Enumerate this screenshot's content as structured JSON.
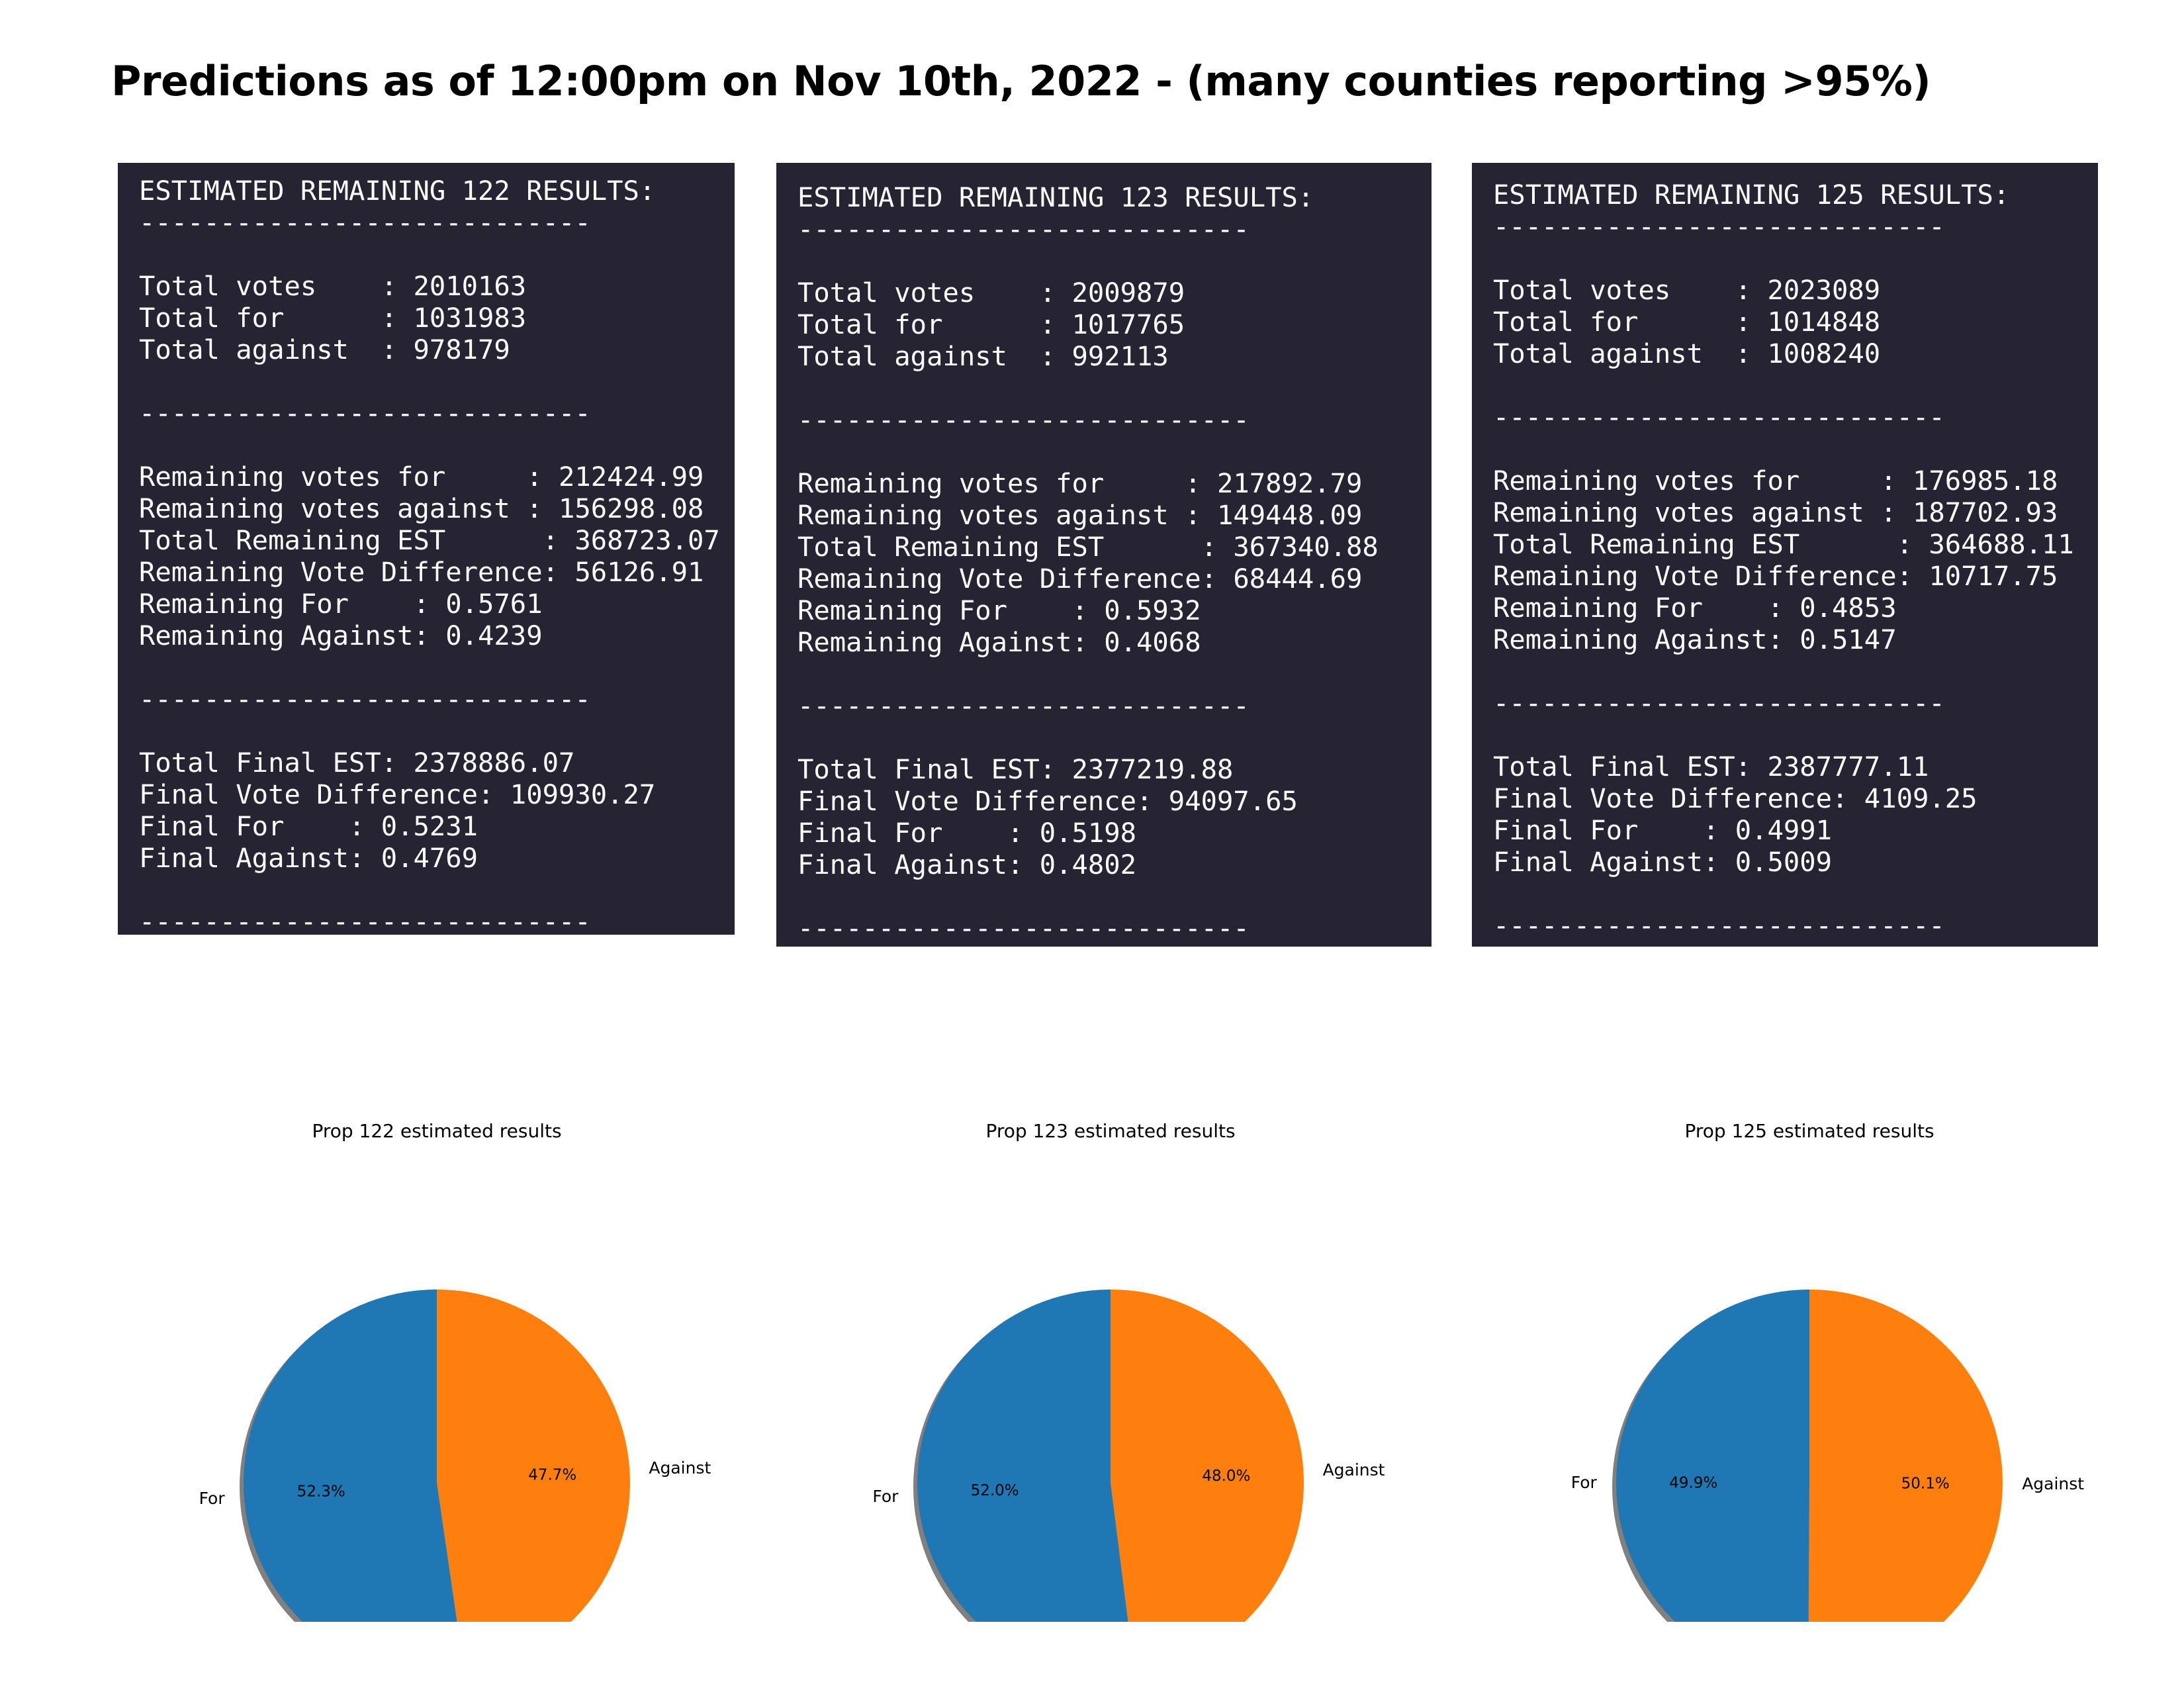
{
  "title": "Predictions as of 12:00pm on Nov 10th, 2022 - (many counties reporting >95%)",
  "panels": [
    {
      "lines": [
        "ESTIMATED REMAINING 122 RESULTS:",
        "----------------------------",
        "",
        "Total votes    : 2010163",
        "Total for      : 1031983",
        "Total against  : 978179",
        "",
        "----------------------------",
        "",
        "Remaining votes for     : 212424.99",
        "Remaining votes against : 156298.08",
        "Total Remaining EST      : 368723.07",
        "Remaining Vote Difference: 56126.91",
        "Remaining For    : 0.5761",
        "Remaining Against: 0.4239",
        "",
        "----------------------------",
        "",
        "Total Final EST: 2378886.07",
        "Final Vote Difference: 109930.27",
        "Final For    : 0.5231",
        "Final Against: 0.4769",
        "",
        "----------------------------"
      ]
    },
    {
      "lines": [
        "ESTIMATED REMAINING 123 RESULTS:",
        "----------------------------",
        "",
        "Total votes    : 2009879",
        "Total for      : 1017765",
        "Total against  : 992113",
        "",
        "----------------------------",
        "",
        "Remaining votes for     : 217892.79",
        "Remaining votes against : 149448.09",
        "Total Remaining EST      : 367340.88",
        "Remaining Vote Difference: 68444.69",
        "Remaining For    : 0.5932",
        "Remaining Against: 0.4068",
        "",
        "----------------------------",
        "",
        "Total Final EST: 2377219.88",
        "Final Vote Difference: 94097.65",
        "Final For    : 0.5198",
        "Final Against: 0.4802",
        "",
        "----------------------------"
      ]
    },
    {
      "lines": [
        "ESTIMATED REMAINING 125 RESULTS:",
        "----------------------------",
        "",
        "Total votes    : 2023089",
        "Total for      : 1014848",
        "Total against  : 1008240",
        "",
        "----------------------------",
        "",
        "Remaining votes for     : 176985.18",
        "Remaining votes against : 187702.93",
        "Total Remaining EST      : 364688.11",
        "Remaining Vote Difference: 10717.75",
        "Remaining For    : 0.4853",
        "Remaining Against: 0.5147",
        "",
        "----------------------------",
        "",
        "Total Final EST: 2387777.11",
        "Final Vote Difference: 4109.25",
        "Final For    : 0.4991",
        "Final Against: 0.5009",
        "",
        "----------------------------"
      ]
    }
  ],
  "chart_data": [
    {
      "type": "pie",
      "title": "Prop 122 estimated results",
      "categories": [
        "For",
        "Against"
      ],
      "values": [
        52.3,
        47.7
      ],
      "value_labels": [
        "52.3%",
        "47.7%"
      ],
      "colors": [
        "#1f77b4",
        "#ff7f0e"
      ],
      "shadow": true
    },
    {
      "type": "pie",
      "title": "Prop 123 estimated results",
      "categories": [
        "For",
        "Against"
      ],
      "values": [
        52.0,
        48.0
      ],
      "value_labels": [
        "52.0%",
        "48.0%"
      ],
      "colors": [
        "#1f77b4",
        "#ff7f0e"
      ],
      "shadow": true
    },
    {
      "type": "pie",
      "title": "Prop 125 estimated results",
      "categories": [
        "For",
        "Against"
      ],
      "values": [
        49.9,
        50.1
      ],
      "value_labels": [
        "49.9%",
        "50.1%"
      ],
      "colors": [
        "#1f77b4",
        "#ff7f0e"
      ],
      "shadow": true
    }
  ]
}
